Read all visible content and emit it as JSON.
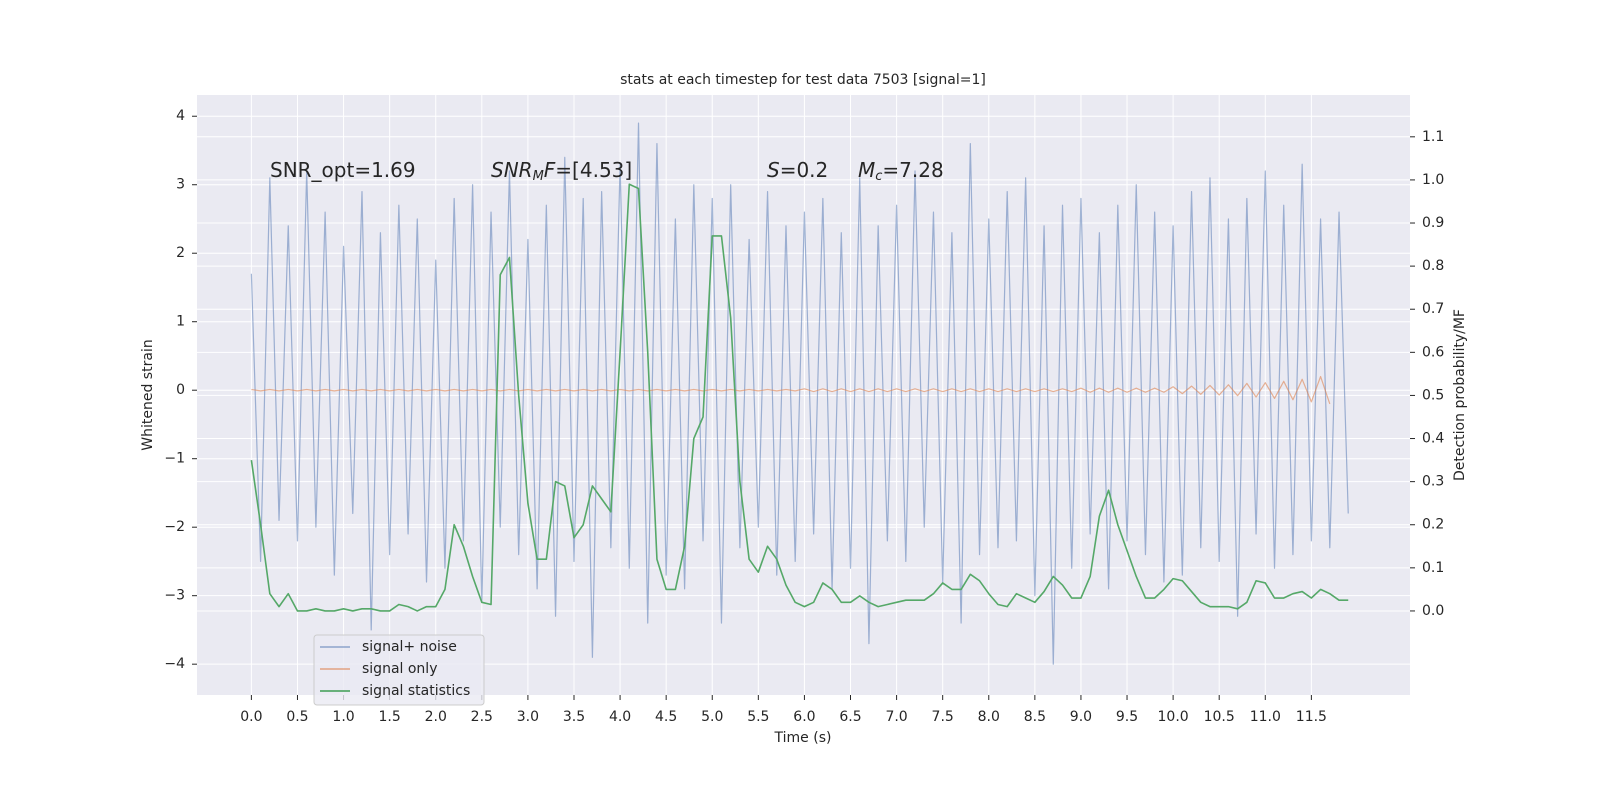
{
  "chart_data": {
    "type": "line",
    "title": "stats at each timestep for test data 7503 [signal=1]",
    "x_label": "Time (s)",
    "y_label": "Whitened strain",
    "y2_label": "Detection probability/MF",
    "annotations": [
      [
        {
          "text": "SNR_opt=1.69"
        }
      ],
      [
        {
          "text": "SNR",
          "italic": true
        },
        {
          "text": "M",
          "italic": true,
          "sub": true
        },
        {
          "text": "F",
          "italic": true
        },
        {
          "text": "=[4.53]"
        }
      ],
      [
        {
          "text": "S",
          "italic": true
        },
        {
          "text": "=0.2"
        }
      ],
      [
        {
          "text": "M",
          "italic": true
        },
        {
          "text": "c",
          "italic": true,
          "sub": true
        },
        {
          "text": "=7.28"
        }
      ]
    ],
    "grid": true,
    "legend": "lower left",
    "xlim": [
      -0.59,
      12.57
    ],
    "xticks": [
      {
        "value": 0,
        "label": "0.0"
      },
      0.5,
      {
        "value": 1,
        "label": "1.0"
      },
      1.5,
      {
        "value": 2,
        "label": "2.0"
      },
      2.5,
      {
        "value": 3,
        "label": "3.0"
      },
      3.5,
      {
        "value": 4,
        "label": "4.0"
      },
      4.5,
      {
        "value": 5,
        "label": "5.0"
      },
      5.5,
      {
        "value": 6,
        "label": "6.0"
      },
      6.5,
      {
        "value": 7,
        "label": "7.0"
      },
      7.5,
      {
        "value": 8,
        "label": "8.0"
      },
      8.5,
      {
        "value": 9,
        "label": "9.0"
      },
      9.5,
      {
        "value": 10,
        "label": "10.0"
      },
      10.5,
      {
        "value": 11,
        "label": "11.0"
      },
      11.5
    ],
    "ylim": [
      -4.45,
      4.31
    ],
    "yticks": [
      {
        "value": -4,
        "label": "−4"
      },
      {
        "value": -3,
        "label": "−3"
      },
      {
        "value": -2,
        "label": "−2"
      },
      {
        "value": -1,
        "label": "−1"
      },
      0,
      1,
      2,
      3,
      4
    ],
    "y2lim": [
      -0.195,
      1.197
    ],
    "y2ticks": [
      {
        "value": 0,
        "label": "0.0"
      },
      0.1,
      0.2,
      0.3,
      0.4,
      0.5,
      0.6,
      0.7,
      0.8,
      0.9,
      {
        "value": 1,
        "label": "1.0"
      },
      1.1
    ],
    "x": [
      0,
      0.1,
      0.2,
      0.3,
      0.4,
      0.5,
      0.6,
      0.7,
      0.8,
      0.9,
      1,
      1.1,
      1.2,
      1.3,
      1.4,
      1.5,
      1.6,
      1.7,
      1.8,
      1.9,
      2,
      2.1,
      2.2,
      2.3,
      2.4,
      2.5,
      2.6,
      2.7,
      2.8,
      2.9,
      3,
      3.1,
      3.2,
      3.3,
      3.4,
      3.5,
      3.6,
      3.7,
      3.8,
      3.9,
      4,
      4.1,
      4.2,
      4.3,
      4.4,
      4.5,
      4.6,
      4.7,
      4.8,
      4.9,
      5,
      5.1,
      5.2,
      5.3,
      5.4,
      5.5,
      5.6,
      5.7,
      5.8,
      5.9,
      6,
      6.1,
      6.2,
      6.3,
      6.4,
      6.5,
      6.6,
      6.7,
      6.8,
      6.9,
      7,
      7.1,
      7.2,
      7.3,
      7.4,
      7.5,
      7.6,
      7.7,
      7.8,
      7.9,
      8,
      8.1,
      8.2,
      8.3,
      8.4,
      8.5,
      8.6,
      8.7,
      8.8,
      8.9,
      9,
      9.1,
      9.2,
      9.3,
      9.4,
      9.5,
      9.6,
      9.7,
      9.8,
      9.9,
      10,
      10.1,
      10.2,
      10.3,
      10.4,
      10.5,
      10.6,
      10.7,
      10.8,
      10.9,
      11,
      11.1,
      11.2,
      11.3,
      11.4,
      11.5,
      11.6,
      11.7,
      11.8,
      11.9
    ],
    "series": [
      {
        "name": "signal+ noise",
        "color": "#4c72b0",
        "opacity": 0.5,
        "values": [
          1.7,
          -2.5,
          3.1,
          -1.9,
          2.4,
          -2.2,
          3.2,
          -2.0,
          2.6,
          -2.7,
          2.1,
          -1.8,
          2.9,
          -3.5,
          2.3,
          -2.4,
          2.7,
          -2.1,
          2.5,
          -2.8,
          1.9,
          -2.6,
          2.8,
          -2.2,
          3.0,
          -3.1,
          2.6,
          -2.0,
          3.2,
          -2.4,
          2.2,
          -2.9,
          2.7,
          -3.3,
          3.4,
          -2.5,
          2.8,
          -3.9,
          2.9,
          -2.3,
          3.3,
          -2.6,
          3.9,
          -3.4,
          3.6,
          -2.7,
          2.5,
          -2.9,
          3.0,
          -2.2,
          2.8,
          -3.4,
          3.0,
          -2.3,
          2.2,
          -2.0,
          2.9,
          -2.7,
          2.4,
          -2.5,
          2.6,
          -2.1,
          2.8,
          -2.9,
          2.3,
          -2.6,
          3.1,
          -3.7,
          2.4,
          -2.2,
          2.7,
          -2.5,
          3.2,
          -2.0,
          2.6,
          -2.8,
          2.3,
          -3.4,
          3.6,
          -2.4,
          2.5,
          -2.3,
          2.9,
          -2.2,
          3.1,
          -3.0,
          2.4,
          -4.0,
          2.7,
          -2.6,
          2.8,
          -2.1,
          2.3,
          -2.9,
          2.7,
          -2.2,
          3.0,
          -2.4,
          2.6,
          -2.8,
          2.4,
          -2.7,
          2.9,
          -2.3,
          3.1,
          -2.5,
          2.5,
          -3.3,
          2.8,
          -2.1,
          3.2,
          -2.6,
          2.7,
          -2.4,
          3.3,
          -2.2,
          2.5,
          -2.3,
          2.6,
          -1.8
        ]
      },
      {
        "name": "signal only",
        "color": "#dd8452",
        "opacity": 0.6,
        "values": [
          0.01,
          -0.01,
          0.01,
          -0.01,
          0.01,
          -0.01,
          0.01,
          -0.01,
          0.01,
          -0.01,
          0.01,
          -0.01,
          0.01,
          -0.01,
          0.01,
          -0.01,
          0.01,
          -0.01,
          0.01,
          -0.01,
          0.01,
          -0.01,
          0.01,
          -0.01,
          0.01,
          -0.01,
          0.01,
          -0.01,
          0.01,
          -0.01,
          0.01,
          -0.01,
          0.01,
          -0.01,
          0.01,
          -0.01,
          0.01,
          -0.01,
          0.01,
          -0.01,
          0.01,
          -0.01,
          0.01,
          -0.01,
          0.01,
          -0.01,
          0.01,
          -0.01,
          0.01,
          -0.01,
          0.01,
          -0.01,
          0.01,
          -0.01,
          0.01,
          -0.01,
          0.01,
          -0.01,
          0.01,
          -0.01,
          0.02,
          -0.02,
          0.02,
          -0.02,
          0.02,
          -0.02,
          0.02,
          -0.02,
          0.02,
          -0.02,
          0.02,
          -0.02,
          0.02,
          -0.02,
          0.02,
          -0.02,
          0.02,
          -0.02,
          0.02,
          -0.02,
          0.02,
          -0.02,
          0.02,
          -0.02,
          0.02,
          -0.02,
          0.02,
          -0.02,
          0.02,
          -0.02,
          0.03,
          -0.03,
          0.03,
          -0.03,
          0.03,
          -0.03,
          0.03,
          -0.03,
          0.03,
          -0.03,
          0.05,
          -0.05,
          0.06,
          -0.06,
          0.07,
          -0.07,
          0.08,
          -0.08,
          0.1,
          -0.1,
          0.11,
          -0.12,
          0.13,
          -0.14,
          0.16,
          -0.17,
          0.2,
          -0.2,
          null,
          null
        ]
      },
      {
        "name": "signal statistics",
        "color": "#55a868",
        "opacity": 1,
        "axis": "y2",
        "values": [
          0.35,
          0.2,
          0.04,
          0.01,
          0.04,
          0.0,
          0.0,
          0.005,
          0.0,
          0.0,
          0.005,
          0.0,
          0.005,
          0.005,
          0.0,
          0.0,
          0.015,
          0.01,
          0.0,
          0.01,
          0.01,
          0.05,
          0.2,
          0.15,
          0.08,
          0.02,
          0.015,
          0.78,
          0.82,
          0.5,
          0.25,
          0.12,
          0.12,
          0.3,
          0.29,
          0.17,
          0.2,
          0.29,
          0.26,
          0.23,
          0.6,
          0.99,
          0.98,
          0.6,
          0.12,
          0.05,
          0.05,
          0.15,
          0.4,
          0.45,
          0.87,
          0.87,
          0.68,
          0.3,
          0.12,
          0.09,
          0.15,
          0.12,
          0.06,
          0.02,
          0.01,
          0.02,
          0.065,
          0.05,
          0.02,
          0.02,
          0.035,
          0.02,
          0.01,
          0.015,
          0.02,
          0.025,
          0.025,
          0.025,
          0.04,
          0.065,
          0.05,
          0.05,
          0.085,
          0.07,
          0.04,
          0.015,
          0.01,
          0.04,
          0.03,
          0.02,
          0.045,
          0.08,
          0.06,
          0.03,
          0.03,
          0.08,
          0.22,
          0.28,
          0.2,
          0.14,
          0.08,
          0.03,
          0.03,
          0.05,
          0.075,
          0.07,
          0.045,
          0.02,
          0.01,
          0.01,
          0.01,
          0.005,
          0.02,
          0.07,
          0.065,
          0.03,
          0.03,
          0.04,
          0.045,
          0.03,
          0.05,
          0.04,
          0.025,
          0.025
        ]
      }
    ]
  }
}
